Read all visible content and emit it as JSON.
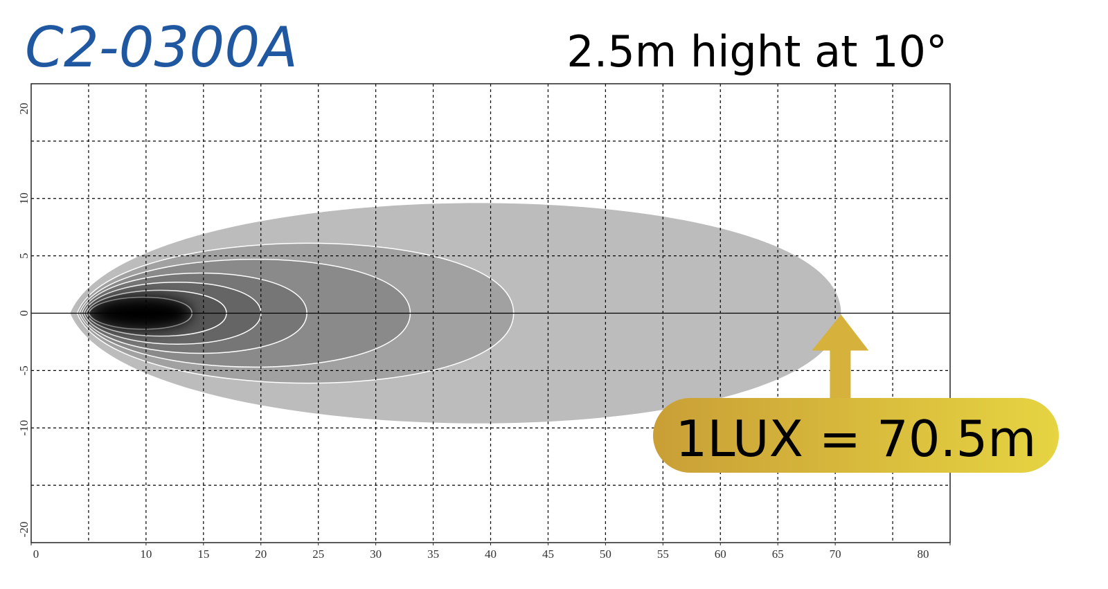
{
  "chart_data": {
    "type": "isolux",
    "title": "C2-0300A",
    "subtitle": "2.5m hight at 10°",
    "xlim": [
      0,
      80
    ],
    "ylim": [
      -20,
      20
    ],
    "xticks": [
      0,
      10,
      15,
      20,
      25,
      30,
      35,
      40,
      45,
      50,
      55,
      60,
      65,
      70,
      80
    ],
    "yticks": [
      -20,
      -10,
      -5,
      0,
      5,
      10,
      20
    ],
    "xgrid": [
      5,
      10,
      15,
      20,
      25,
      30,
      35,
      40,
      45,
      50,
      55,
      60,
      65,
      70,
      75
    ],
    "ygrid": [
      -15,
      -10,
      -5,
      0,
      5,
      10,
      15
    ],
    "contours": [
      {
        "x_start": 3.4,
        "x_end": 70.5,
        "y_half": 9.6
      },
      {
        "x_start": 4.0,
        "x_end": 42,
        "y_half": 6.1
      },
      {
        "x_start": 4.2,
        "x_end": 33,
        "y_half": 4.7
      },
      {
        "x_start": 4.4,
        "x_end": 24,
        "y_half": 3.5
      },
      {
        "x_start": 4.6,
        "x_end": 20,
        "y_half": 2.7
      },
      {
        "x_start": 4.8,
        "x_end": 17,
        "y_half": 2.0
      },
      {
        "x_start": 5.0,
        "x_end": 14,
        "y_half": 1.4
      }
    ],
    "annotation": {
      "label": "1LUX = 70.5m",
      "value": 70.5
    },
    "title_color": "#1f57a0",
    "annotation_color": "#d6b23c"
  }
}
